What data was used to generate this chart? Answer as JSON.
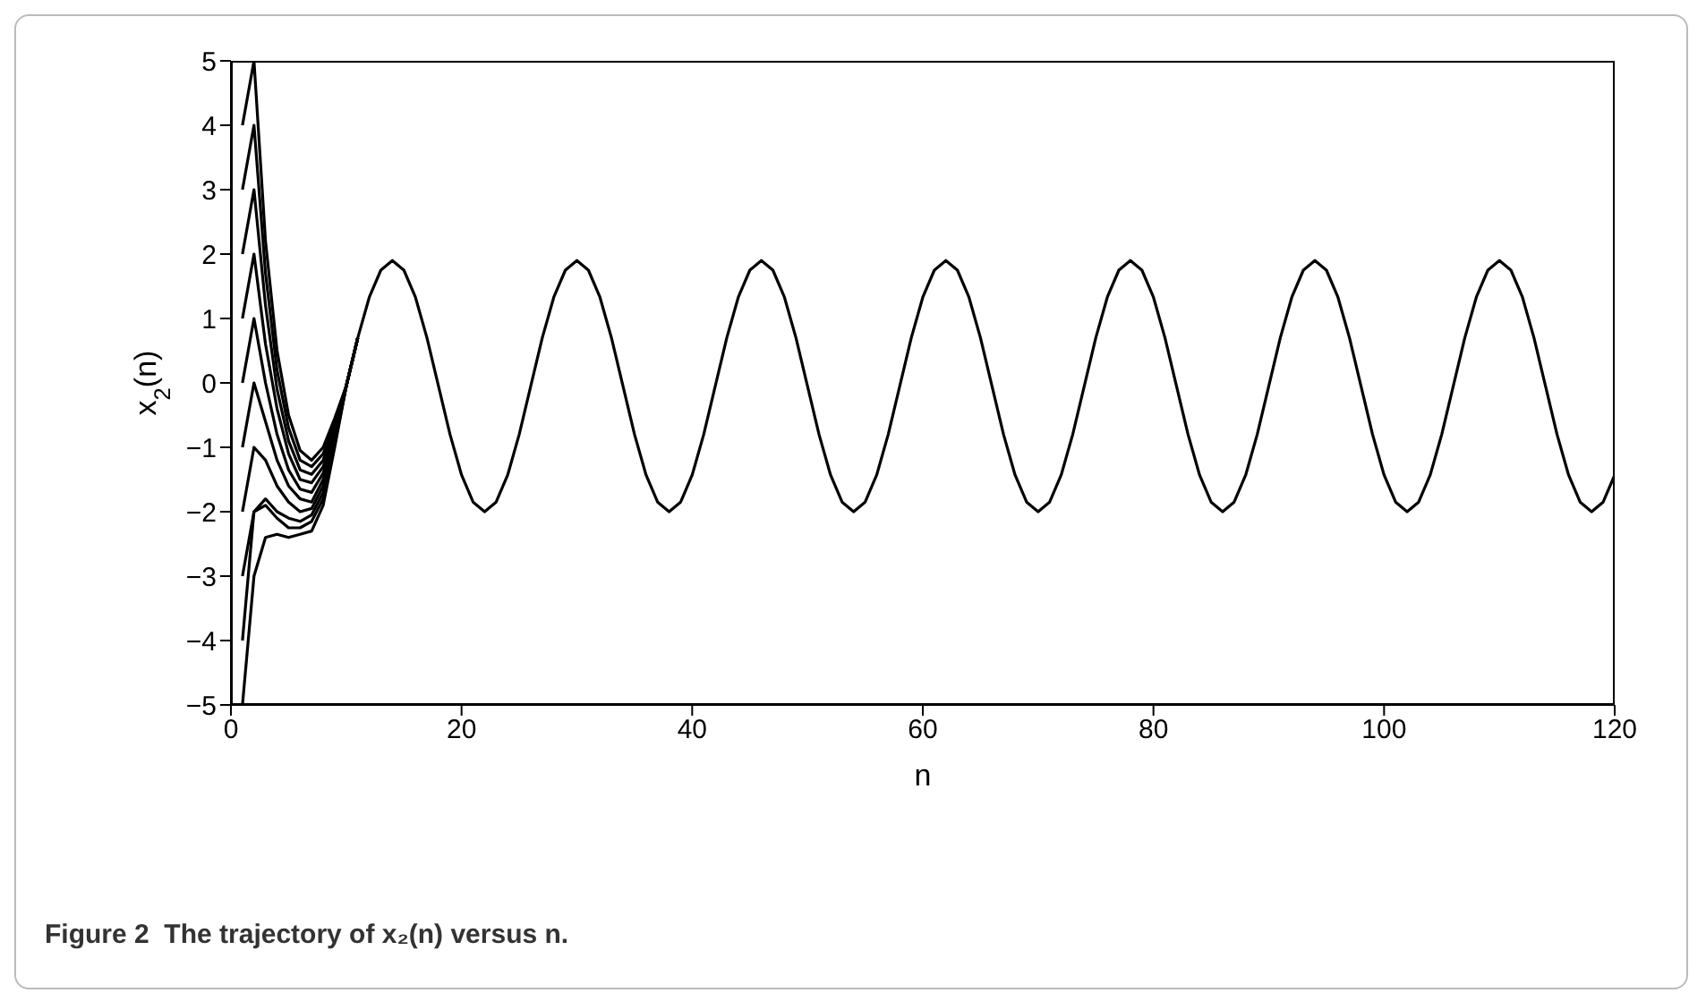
{
  "chart_data": {
    "type": "line",
    "xlabel": "n",
    "ylabel": "x$_{2}$(n)",
    "annotations": [
      "Figure 2  The trajectory of x₂(n) versus n."
    ],
    "xlim": [
      0,
      120
    ],
    "xticks": [
      0,
      20,
      40,
      60,
      80,
      100,
      120
    ],
    "ylim": [
      -5,
      5
    ],
    "yticks": [
      -5,
      -4,
      -3,
      -2,
      -1,
      0,
      1,
      2,
      3,
      4,
      5
    ],
    "line_style": "solid",
    "series": [
      {
        "color": "#000000",
        "x": [
          1,
          2,
          3,
          4,
          5,
          6,
          7,
          8,
          9,
          10,
          11,
          12,
          13,
          14,
          15,
          16,
          17,
          18,
          19,
          20,
          21,
          22,
          23,
          24,
          25,
          26,
          27,
          28,
          29,
          30,
          31,
          32,
          33,
          34,
          35,
          36,
          37,
          38,
          39,
          40,
          41,
          42,
          43,
          44,
          45,
          46,
          47,
          48,
          49,
          50,
          51,
          52,
          53,
          54,
          55,
          56,
          57,
          58,
          59,
          60,
          61,
          62,
          63,
          64,
          65,
          66,
          67,
          68,
          69,
          70,
          71,
          72,
          73,
          74,
          75,
          76,
          77,
          78,
          79,
          80,
          81,
          82,
          83,
          84,
          85,
          86,
          87,
          88,
          89,
          90,
          91,
          92,
          93,
          94,
          95,
          96,
          97,
          98,
          99,
          100,
          101,
          102,
          103,
          104,
          105,
          106,
          107,
          108,
          109,
          110,
          111,
          112,
          113,
          114,
          115,
          116,
          117,
          118,
          119,
          120
        ],
        "values": [
          4,
          5,
          2.2,
          0.5,
          -0.5,
          -1.05,
          -1.2,
          -1.0,
          -0.55,
          -0.05,
          0.7,
          1.33,
          1.75,
          1.9,
          1.75,
          1.33,
          0.7,
          -0.05,
          -0.8,
          -1.43,
          -1.85,
          -2.0,
          -1.85,
          -1.43,
          -0.8,
          -0.05,
          0.7,
          1.33,
          1.75,
          1.9,
          1.75,
          1.33,
          0.7,
          -0.05,
          -0.8,
          -1.43,
          -1.85,
          -2.0,
          -1.85,
          -1.43,
          -0.8,
          -0.05,
          0.7,
          1.33,
          1.75,
          1.9,
          1.75,
          1.33,
          0.7,
          -0.05,
          -0.8,
          -1.43,
          -1.85,
          -2.0,
          -1.85,
          -1.43,
          -0.8,
          -0.05,
          0.7,
          1.33,
          1.75,
          1.9,
          1.75,
          1.33,
          0.7,
          -0.05,
          -0.8,
          -1.43,
          -1.85,
          -2.0,
          -1.85,
          -1.43,
          -0.8,
          -0.05,
          0.7,
          1.33,
          1.75,
          1.9,
          1.75,
          1.33,
          0.7,
          -0.05,
          -0.8,
          -1.43,
          -1.85,
          -2.0,
          -1.85,
          -1.43,
          -0.8,
          -0.05,
          0.7,
          1.33,
          1.75,
          1.9,
          1.75,
          1.33,
          0.7,
          -0.05,
          -0.8,
          -1.43,
          -1.85,
          -2.0,
          -1.85,
          -1.43,
          -0.8,
          -0.05,
          0.7,
          1.33,
          1.75,
          1.9,
          1.75,
          1.33,
          0.7,
          -0.05,
          -0.8,
          -1.43,
          -1.85,
          -2.0,
          -1.85,
          -1.43
        ]
      },
      {
        "color": "#000000",
        "x": [
          1,
          2,
          3,
          4,
          5,
          6,
          7,
          8,
          9,
          10,
          11
        ],
        "values": [
          3,
          4,
          1.7,
          0.2,
          -0.7,
          -1.2,
          -1.3,
          -1.1,
          -0.6,
          -0.05,
          0.7
        ]
      },
      {
        "color": "#000000",
        "x": [
          1,
          2,
          3,
          4,
          5,
          6,
          7,
          8,
          9,
          10,
          11
        ],
        "values": [
          2,
          3,
          1.2,
          -0.1,
          -0.9,
          -1.35,
          -1.42,
          -1.2,
          -0.65,
          -0.05,
          0.7
        ]
      },
      {
        "color": "#000000",
        "x": [
          1,
          2,
          3,
          4,
          5,
          6,
          7,
          8,
          9,
          10,
          11
        ],
        "values": [
          1,
          2,
          0.6,
          -0.4,
          -1.1,
          -1.5,
          -1.55,
          -1.3,
          -0.7,
          -0.05,
          0.7
        ]
      },
      {
        "color": "#000000",
        "x": [
          1,
          2,
          3,
          4,
          5,
          6,
          7,
          8,
          9,
          10,
          11
        ],
        "values": [
          0,
          1,
          0.0,
          -0.8,
          -1.35,
          -1.65,
          -1.7,
          -1.4,
          -0.75,
          -0.05,
          0.7
        ]
      },
      {
        "color": "#000000",
        "x": [
          1,
          2,
          3,
          4,
          5,
          6,
          7,
          8,
          9,
          10,
          11
        ],
        "values": [
          -1,
          0,
          -0.6,
          -1.2,
          -1.6,
          -1.8,
          -1.85,
          -1.5,
          -0.8,
          -0.05,
          0.7
        ]
      },
      {
        "color": "#000000",
        "x": [
          1,
          2,
          3,
          4,
          5,
          6,
          7,
          8,
          9,
          10,
          11
        ],
        "values": [
          -2,
          -1,
          -1.2,
          -1.6,
          -1.85,
          -2.0,
          -1.95,
          -1.6,
          -0.85,
          -0.05,
          0.7
        ]
      },
      {
        "color": "#000000",
        "x": [
          1,
          2,
          3,
          4,
          5,
          6,
          7,
          8,
          9,
          10,
          11
        ],
        "values": [
          -3,
          -2,
          -1.8,
          -2.0,
          -2.1,
          -2.15,
          -2.05,
          -1.7,
          -0.9,
          -0.05,
          0.7
        ]
      },
      {
        "color": "#000000",
        "x": [
          1,
          2,
          3,
          4,
          5,
          6,
          7,
          8,
          9,
          10,
          11
        ],
        "values": [
          -4,
          -2,
          -1.9,
          -2.1,
          -2.25,
          -2.25,
          -2.15,
          -1.8,
          -0.95,
          -0.05,
          0.7
        ]
      },
      {
        "color": "#000000",
        "x": [
          1,
          2,
          3,
          4,
          5,
          6,
          7,
          8,
          9,
          10,
          11
        ],
        "values": [
          -5,
          -3,
          -2.4,
          -2.35,
          -2.4,
          -2.35,
          -2.3,
          -1.9,
          -1.0,
          -0.05,
          0.7
        ]
      }
    ]
  }
}
